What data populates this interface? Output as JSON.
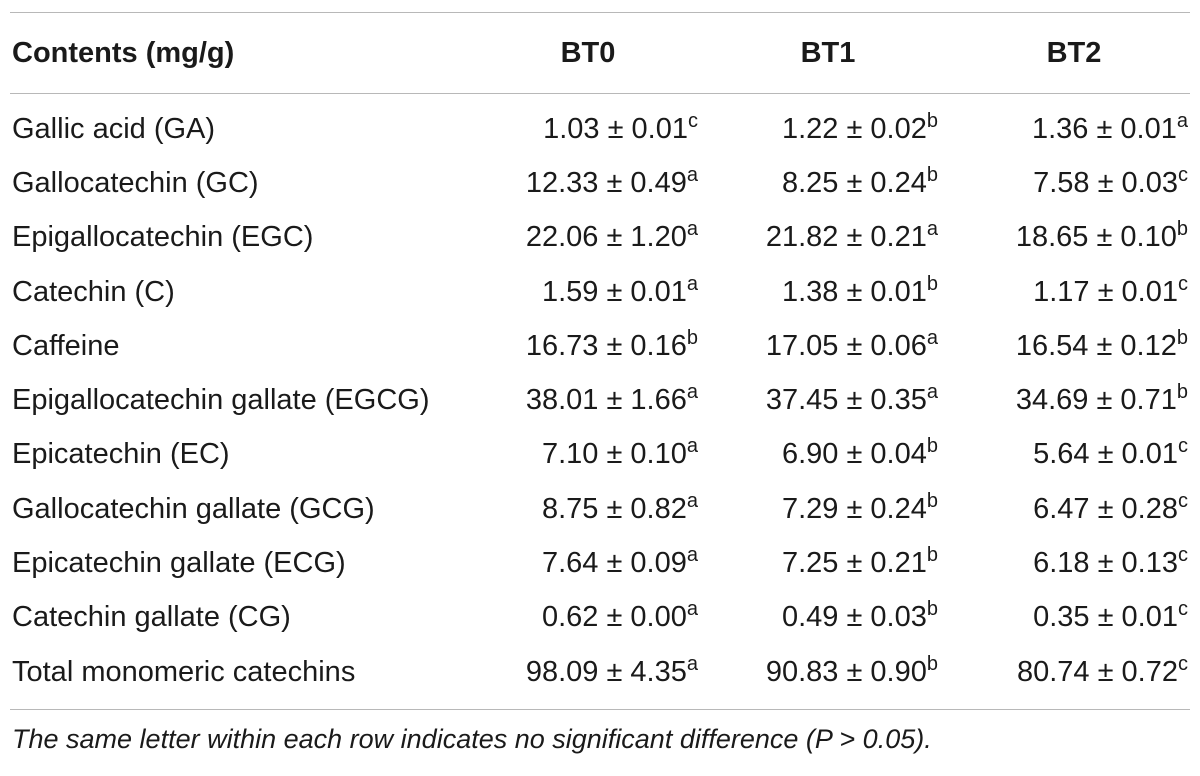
{
  "table": {
    "headers": [
      "Contents (mg/g)",
      "BT0",
      "BT1",
      "BT2"
    ],
    "rows": [
      {
        "label": "Gallic acid (GA)",
        "cells": [
          {
            "v": "1.03 ± 0.01",
            "s": "c"
          },
          {
            "v": "1.22 ± 0.02",
            "s": "b"
          },
          {
            "v": "1.36 ± 0.01",
            "s": "a"
          }
        ]
      },
      {
        "label": "Gallocatechin (GC)",
        "cells": [
          {
            "v": "12.33 ± 0.49",
            "s": "a"
          },
          {
            "v": "8.25 ± 0.24",
            "s": "b"
          },
          {
            "v": "7.58 ± 0.03",
            "s": "c"
          }
        ]
      },
      {
        "label": "Epigallocatechin (EGC)",
        "cells": [
          {
            "v": "22.06 ± 1.20",
            "s": "a"
          },
          {
            "v": "21.82 ± 0.21",
            "s": "a"
          },
          {
            "v": "18.65 ± 0.10",
            "s": "b"
          }
        ]
      },
      {
        "label": "Catechin (C)",
        "cells": [
          {
            "v": "1.59 ± 0.01",
            "s": "a"
          },
          {
            "v": "1.38 ± 0.01",
            "s": "b"
          },
          {
            "v": "1.17 ± 0.01",
            "s": "c"
          }
        ]
      },
      {
        "label": "Caffeine",
        "cells": [
          {
            "v": "16.73 ± 0.16",
            "s": "b"
          },
          {
            "v": "17.05 ± 0.06",
            "s": "a"
          },
          {
            "v": "16.54 ± 0.12",
            "s": "b"
          }
        ]
      },
      {
        "label": "Epigallocatechin gallate (EGCG)",
        "cells": [
          {
            "v": "38.01 ± 1.66",
            "s": "a"
          },
          {
            "v": "37.45 ± 0.35",
            "s": "a"
          },
          {
            "v": "34.69 ± 0.71",
            "s": "b"
          }
        ]
      },
      {
        "label": "Epicatechin (EC)",
        "cells": [
          {
            "v": "7.10 ± 0.10",
            "s": "a"
          },
          {
            "v": "6.90 ± 0.04",
            "s": "b"
          },
          {
            "v": "5.64 ± 0.01",
            "s": "c"
          }
        ]
      },
      {
        "label": "Gallocatechin gallate (GCG)",
        "cells": [
          {
            "v": "8.75 ± 0.82",
            "s": "a"
          },
          {
            "v": "7.29 ± 0.24",
            "s": "b"
          },
          {
            "v": "6.47 ± 0.28",
            "s": "c"
          }
        ]
      },
      {
        "label": "Epicatechin gallate (ECG)",
        "cells": [
          {
            "v": "7.64 ± 0.09",
            "s": "a"
          },
          {
            "v": "7.25 ± 0.21",
            "s": "b"
          },
          {
            "v": "6.18 ± 0.13",
            "s": "c"
          }
        ]
      },
      {
        "label": "Catechin gallate (CG)",
        "cells": [
          {
            "v": "0.62 ± 0.00",
            "s": "a"
          },
          {
            "v": "0.49 ± 0.03",
            "s": "b"
          },
          {
            "v": "0.35 ± 0.01",
            "s": "c"
          }
        ]
      },
      {
        "label": "Total monomeric catechins",
        "cells": [
          {
            "v": "98.09 ± 4.35",
            "s": "a"
          },
          {
            "v": "90.83 ± 0.90",
            "s": "b"
          },
          {
            "v": "80.74 ± 0.72",
            "s": "c"
          }
        ]
      }
    ]
  },
  "footnote": "The same letter within each row indicates no significant difference (P > 0.05)."
}
